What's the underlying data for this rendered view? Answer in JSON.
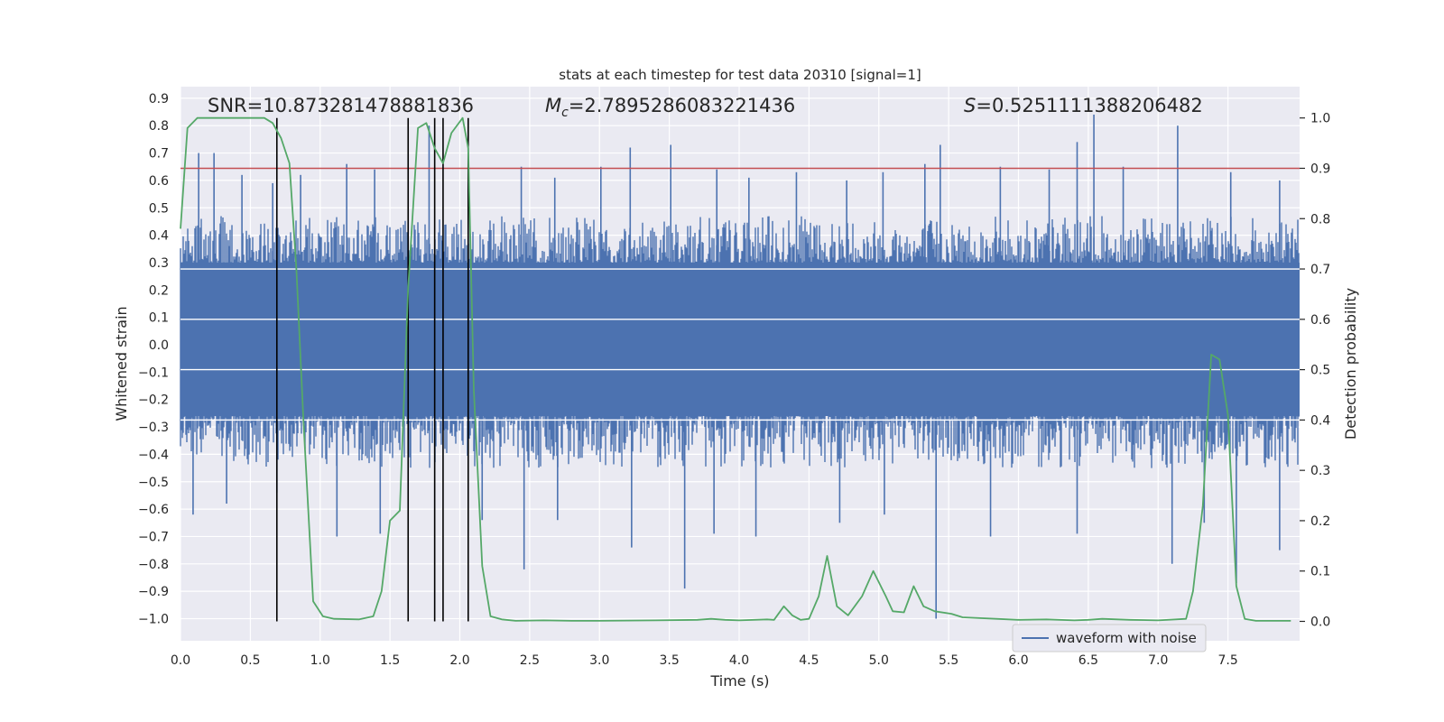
{
  "chart_data": {
    "type": "line",
    "title": "stats at each timestep for test data 20310 [signal=1]",
    "xlabel": "Time (s)",
    "ylabel_left": "Whitened strain",
    "ylabel_right": "Detection probability",
    "xlim": [
      0.0,
      8.0
    ],
    "ylim_left": [
      -1.08,
      0.93
    ],
    "ylim_right": [
      -0.05,
      1.05
    ],
    "x_ticks": [
      "0.0",
      "0.5",
      "1.0",
      "1.5",
      "2.0",
      "2.5",
      "3.0",
      "3.5",
      "4.0",
      "4.5",
      "5.0",
      "5.5",
      "6.0",
      "6.5",
      "7.0",
      "7.5"
    ],
    "y_ticks_left": [
      "0.9",
      "0.8",
      "0.7",
      "0.6",
      "0.5",
      "0.4",
      "0.3",
      "0.2",
      "0.1",
      "0.0",
      "-0.1",
      "-0.2",
      "-0.3",
      "-0.4",
      "-0.5",
      "-0.6",
      "-0.7",
      "-0.8",
      "-0.9",
      "-1.0"
    ],
    "y_ticks_right": [
      "1.0",
      "0.9",
      "0.8",
      "0.7",
      "0.6",
      "0.5",
      "0.4",
      "0.3",
      "0.2",
      "0.1",
      "0.0"
    ],
    "grid": true,
    "annotations": {
      "snr": "SNR=10.873281478881836",
      "mc_symbol": "M",
      "mc_sub": "c",
      "mc_value": "=2.7895286083221436",
      "s_symbol": "S",
      "s_value": "=0.5251111388206482"
    },
    "legend": {
      "label": "waveform with noise",
      "placement": "lower right"
    },
    "colors": {
      "waveform": "#4c72b0",
      "probability": "#55a868",
      "threshold": "#c44e52",
      "markers": "#000000",
      "axes_bg": "#eaeaf2"
    },
    "threshold_right": 0.9,
    "vertical_markers_x": [
      0.69,
      1.63,
      1.82,
      1.88,
      2.06
    ],
    "waveform_band_left": [
      -0.26,
      0.3
    ],
    "waveform_envelope_left": [
      -0.45,
      0.47
    ],
    "waveform_peaks": [
      {
        "x": 0.13,
        "y": 0.7
      },
      {
        "x": 0.24,
        "y": 0.7
      },
      {
        "x": 0.44,
        "y": 0.62
      },
      {
        "x": 0.66,
        "y": 0.59
      },
      {
        "x": 0.86,
        "y": 0.62
      },
      {
        "x": 1.19,
        "y": 0.66
      },
      {
        "x": 1.39,
        "y": 0.64
      },
      {
        "x": 1.78,
        "y": 0.8
      },
      {
        "x": 2.44,
        "y": 0.65
      },
      {
        "x": 2.68,
        "y": 0.61
      },
      {
        "x": 3.01,
        "y": 0.65
      },
      {
        "x": 3.22,
        "y": 0.72
      },
      {
        "x": 3.51,
        "y": 0.73
      },
      {
        "x": 3.84,
        "y": 0.64
      },
      {
        "x": 4.07,
        "y": 0.61
      },
      {
        "x": 4.41,
        "y": 0.63
      },
      {
        "x": 4.77,
        "y": 0.6
      },
      {
        "x": 5.03,
        "y": 0.63
      },
      {
        "x": 5.33,
        "y": 0.66
      },
      {
        "x": 5.44,
        "y": 0.73
      },
      {
        "x": 5.87,
        "y": 0.65
      },
      {
        "x": 6.22,
        "y": 0.64
      },
      {
        "x": 6.42,
        "y": 0.74
      },
      {
        "x": 6.54,
        "y": 0.84
      },
      {
        "x": 6.75,
        "y": 0.65
      },
      {
        "x": 7.14,
        "y": 0.8
      },
      {
        "x": 7.52,
        "y": 0.63
      },
      {
        "x": 7.87,
        "y": 0.6
      }
    ],
    "waveform_troughs": [
      {
        "x": 0.09,
        "y": -0.62
      },
      {
        "x": 0.33,
        "y": -0.58
      },
      {
        "x": 0.69,
        "y": -0.54
      },
      {
        "x": 1.12,
        "y": -0.7
      },
      {
        "x": 1.43,
        "y": -0.69
      },
      {
        "x": 2.16,
        "y": -0.64
      },
      {
        "x": 2.46,
        "y": -0.82
      },
      {
        "x": 2.7,
        "y": -0.64
      },
      {
        "x": 3.23,
        "y": -0.74
      },
      {
        "x": 3.61,
        "y": -0.89
      },
      {
        "x": 3.82,
        "y": -0.69
      },
      {
        "x": 4.12,
        "y": -0.7
      },
      {
        "x": 4.72,
        "y": -0.65
      },
      {
        "x": 5.04,
        "y": -0.62
      },
      {
        "x": 5.41,
        "y": -1.0
      },
      {
        "x": 5.8,
        "y": -0.7
      },
      {
        "x": 6.42,
        "y": -0.69
      },
      {
        "x": 7.1,
        "y": -0.8
      },
      {
        "x": 7.33,
        "y": -0.65
      },
      {
        "x": 7.56,
        "y": -0.87
      },
      {
        "x": 7.87,
        "y": -0.75
      }
    ],
    "probability_series": {
      "x": [
        0.0,
        0.05,
        0.12,
        0.2,
        0.4,
        0.6,
        0.66,
        0.72,
        0.78,
        0.83,
        0.88,
        0.95,
        1.02,
        1.1,
        1.28,
        1.38,
        1.44,
        1.5,
        1.57,
        1.63,
        1.7,
        1.76,
        1.82,
        1.88,
        1.94,
        2.02,
        2.06,
        2.1,
        2.16,
        2.22,
        2.3,
        2.4,
        2.6,
        2.8,
        3.0,
        3.4,
        3.7,
        3.8,
        3.9,
        4.0,
        4.2,
        4.25,
        4.32,
        4.38,
        4.44,
        4.5,
        4.57,
        4.63,
        4.7,
        4.78,
        4.88,
        4.96,
        5.05,
        5.1,
        5.18,
        5.25,
        5.32,
        5.4,
        5.52,
        5.6,
        6.0,
        6.2,
        6.4,
        6.5,
        6.6,
        6.8,
        7.0,
        7.2,
        7.25,
        7.32,
        7.38,
        7.44,
        7.5,
        7.56,
        7.62,
        7.7,
        7.95
      ],
      "y": [
        0.78,
        0.98,
        1.0,
        1.0,
        1.0,
        1.0,
        0.99,
        0.96,
        0.91,
        0.7,
        0.4,
        0.04,
        0.01,
        0.005,
        0.004,
        0.01,
        0.06,
        0.2,
        0.22,
        0.66,
        0.98,
        0.99,
        0.94,
        0.91,
        0.97,
        1.0,
        0.94,
        0.46,
        0.11,
        0.01,
        0.004,
        0.001,
        0.002,
        0.001,
        0.001,
        0.002,
        0.003,
        0.005,
        0.003,
        0.002,
        0.004,
        0.003,
        0.03,
        0.012,
        0.003,
        0.005,
        0.05,
        0.13,
        0.03,
        0.012,
        0.05,
        0.1,
        0.05,
        0.02,
        0.018,
        0.07,
        0.03,
        0.02,
        0.015,
        0.008,
        0.003,
        0.004,
        0.002,
        0.003,
        0.005,
        0.003,
        0.002,
        0.005,
        0.06,
        0.23,
        0.53,
        0.52,
        0.41,
        0.07,
        0.005,
        0.001,
        0.001
      ]
    }
  }
}
